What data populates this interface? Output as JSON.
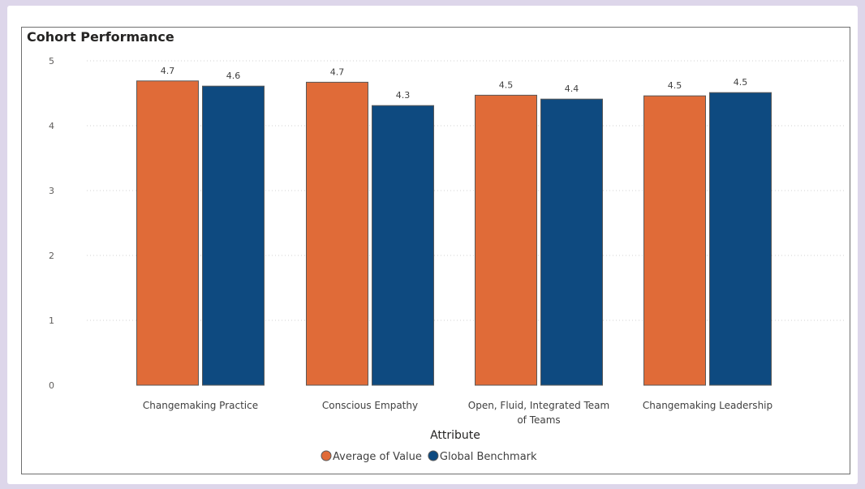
{
  "chart_data": {
    "type": "bar",
    "title": "Cohort Performance",
    "xlabel": "Attribute",
    "ylabel": "",
    "ylim": [
      0,
      5
    ],
    "yticks": [
      0,
      1,
      2,
      3,
      4,
      5
    ],
    "grid": true,
    "legend_position": "bottom-center",
    "categories": [
      [
        "Changemaking Practice"
      ],
      [
        "Conscious Empathy"
      ],
      [
        "Open, Fluid, Integrated Team",
        "of Teams"
      ],
      [
        "Changemaking Leadership"
      ]
    ],
    "series": [
      {
        "name": "Average of Value",
        "color": "#e06b38",
        "values": [
          4.69,
          4.67,
          4.47,
          4.46
        ],
        "labels": [
          "4.7",
          "4.7",
          "4.5",
          "4.5"
        ]
      },
      {
        "name": "Global Benchmark",
        "color": "#0e4a80",
        "values": [
          4.61,
          4.31,
          4.41,
          4.51
        ],
        "labels": [
          "4.6",
          "4.3",
          "4.4",
          "4.5"
        ]
      }
    ]
  }
}
